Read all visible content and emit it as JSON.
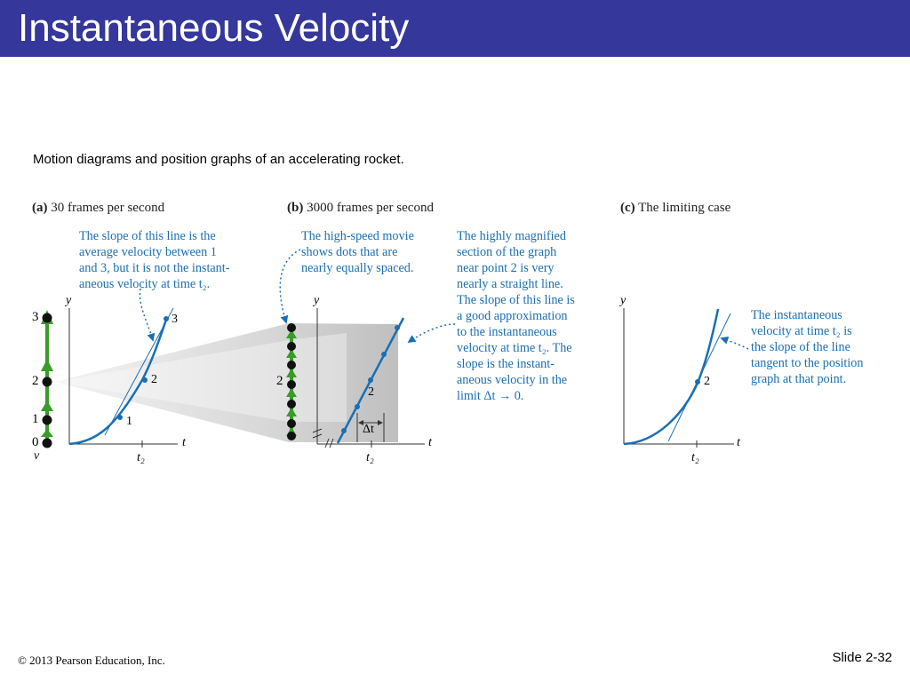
{
  "slide": {
    "title": "Instantaneous Velocity",
    "subtitle": "Motion diagrams and position graphs of an accelerating rocket.",
    "footer_left": "© 2013 Pearson Education, Inc.",
    "footer_right": "Slide 2-32"
  },
  "panels": {
    "a": {
      "label": "(a)",
      "title": "30 frames per second",
      "callout": [
        "The slope of this line is the",
        "average velocity between 1",
        "and 3, but it is not the instant-",
        "aneous velocity at time t₂."
      ],
      "dot_labels": [
        "3",
        "2",
        "1",
        "0"
      ],
      "v_label": "v",
      "axis_y": "y",
      "axis_x": "t",
      "tick": "t₂",
      "point_labels": [
        "1",
        "2",
        "3"
      ]
    },
    "b": {
      "label": "(b)",
      "title": "3000 frames per second",
      "callout_left": [
        "The high-speed movie",
        "shows dots that are",
        "nearly equally spaced."
      ],
      "callout_right": [
        "The highly magnified",
        "section of the graph",
        "near point 2 is very",
        "nearly a straight line.",
        "The slope of this line is",
        "a good approximation",
        "to the instantaneous",
        "velocity at time t₂. The",
        "slope is the instant-",
        "aneous velocity in the",
        "limit Δt → 0."
      ],
      "dot_label": "2",
      "axis_y": "y",
      "axis_x": "t",
      "tick": "t₂",
      "point_label": "2",
      "delta_label": "Δt"
    },
    "c": {
      "label": "(c)",
      "title": "The limiting case",
      "callout": [
        "The instantaneous",
        "velocity at time t₂ is",
        "the slope of the line",
        "tangent to the position",
        "graph at that point."
      ],
      "axis_y": "y",
      "axis_x": "t",
      "tick": "t₂",
      "point_label": "2"
    }
  },
  "colors": {
    "title_bar": "#35379a",
    "curve": "#1a6fb4",
    "arrow_green": "#3a9a2a",
    "callout_text": "#1a6fb4"
  }
}
